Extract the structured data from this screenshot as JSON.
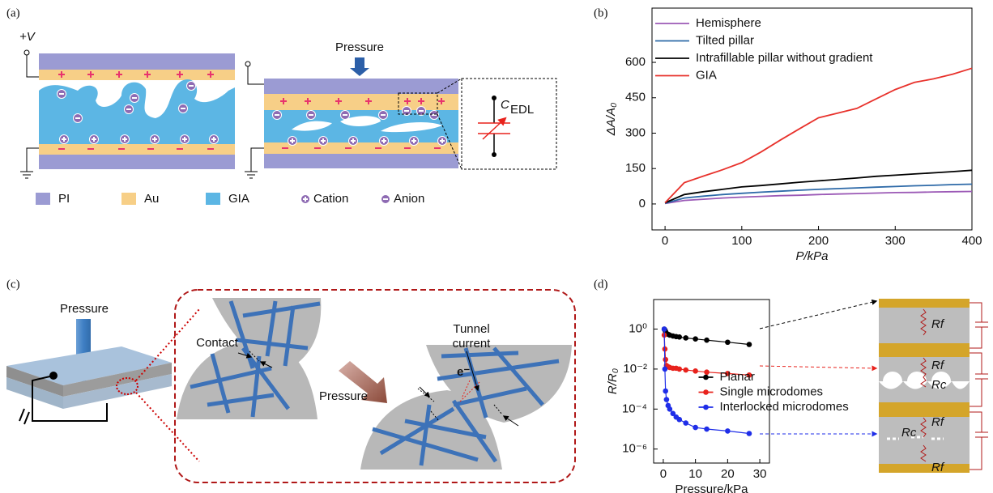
{
  "panel_a": {
    "label": "(a)",
    "voltage": "+V",
    "pressure": "Pressure",
    "capacitance": "C",
    "capacitance_sub": "EDL",
    "legend": [
      "PI",
      "Au",
      "GIA",
      "Cation",
      "Anion"
    ]
  },
  "panel_c": {
    "label": "(c)",
    "pressure_left": "Pressure",
    "contact": "Contact",
    "pressure_mid": "Pressure",
    "tunnel": [
      "Tunnel",
      "current"
    ],
    "electron": "e⁻"
  },
  "chart_data": [
    {
      "type": "line",
      "panel_label": "(b)",
      "xlabel": "P/kPa",
      "ylabel": "ΔA/A₀",
      "x": [
        0,
        25,
        50,
        75,
        100,
        125,
        150,
        175,
        200,
        225,
        250,
        275,
        300,
        325,
        350,
        375,
        400
      ],
      "series": [
        {
          "name": "Hemisphere",
          "color": "#9b59b6",
          "values": [
            2,
            15,
            20,
            25,
            29,
            32,
            35,
            37,
            40,
            42,
            44,
            46,
            48,
            49,
            51,
            52,
            53
          ]
        },
        {
          "name": "Tilted pillar",
          "color": "#2e6aa8",
          "values": [
            3,
            25,
            33,
            40,
            45,
            50,
            54,
            58,
            62,
            65,
            68,
            71,
            74,
            77,
            79,
            82,
            84
          ]
        },
        {
          "name": "Intrafillable pillar without gradient",
          "color": "#000000",
          "values": [
            5,
            40,
            52,
            62,
            72,
            78,
            85,
            92,
            98,
            104,
            110,
            117,
            122,
            127,
            132,
            137,
            143
          ]
        },
        {
          "name": "GIA",
          "color": "#e8322c",
          "values": [
            5,
            90,
            118,
            145,
            175,
            220,
            270,
            318,
            365,
            385,
            405,
            445,
            485,
            515,
            530,
            550,
            575
          ]
        }
      ],
      "xlim": [
        -17,
        400
      ],
      "ylim": [
        -110,
        830
      ],
      "xticks": [
        0,
        100,
        200,
        300,
        400
      ],
      "yticks": [
        0,
        150,
        300,
        450,
        600
      ],
      "legend": "upper left",
      "markers": false,
      "log_y": false
    },
    {
      "type": "line",
      "panel_label": "(d)",
      "xlabel": "Pressure/kPa",
      "ylabel": "R/R₀",
      "x": [
        0.3,
        0.5,
        0.7,
        1,
        1.5,
        2,
        3,
        4,
        5,
        7,
        10,
        13.5,
        20,
        26.7
      ],
      "series": [
        {
          "name": "Planar",
          "color": "#000000",
          "values": [
            1.0,
            0.9,
            0.75,
            0.6,
            0.55,
            0.5,
            0.45,
            0.42,
            0.4,
            0.36,
            0.32,
            0.28,
            0.22,
            0.17
          ]
        },
        {
          "name": "Single microdomes",
          "color": "#e8221c",
          "values": [
            0.5,
            0.1,
            0.03,
            0.015,
            0.013,
            0.012,
            0.011,
            0.011,
            0.01,
            0.009,
            0.008,
            0.007,
            0.006,
            0.005
          ]
        },
        {
          "name": "Interlocked microdomes",
          "color": "#1f2ee8",
          "values": [
            1,
            0.01,
            0.0008,
            0.0003,
            0.00015,
            0.0001,
            6e-05,
            4e-05,
            3e-05,
            2e-05,
            1.2e-05,
            1e-05,
            8e-06,
            6e-06
          ]
        }
      ],
      "xlim": [
        -3,
        33
      ],
      "ylim": [
        2e-07,
        30
      ],
      "xticks": [
        0,
        10,
        20,
        30
      ],
      "yticks": [
        {
          "value": 1,
          "label": "10⁰"
        },
        {
          "value": 0.01,
          "label": "10⁻²"
        },
        {
          "value": 0.0001,
          "label": "10⁻⁴"
        },
        {
          "value": 1e-06,
          "label": "10⁻⁶"
        }
      ],
      "legend": "center",
      "markers": true,
      "log_y": true,
      "annotations": [
        "Rf",
        "Rf",
        "Rc",
        "Rf",
        "Rc",
        "Rf"
      ]
    }
  ]
}
